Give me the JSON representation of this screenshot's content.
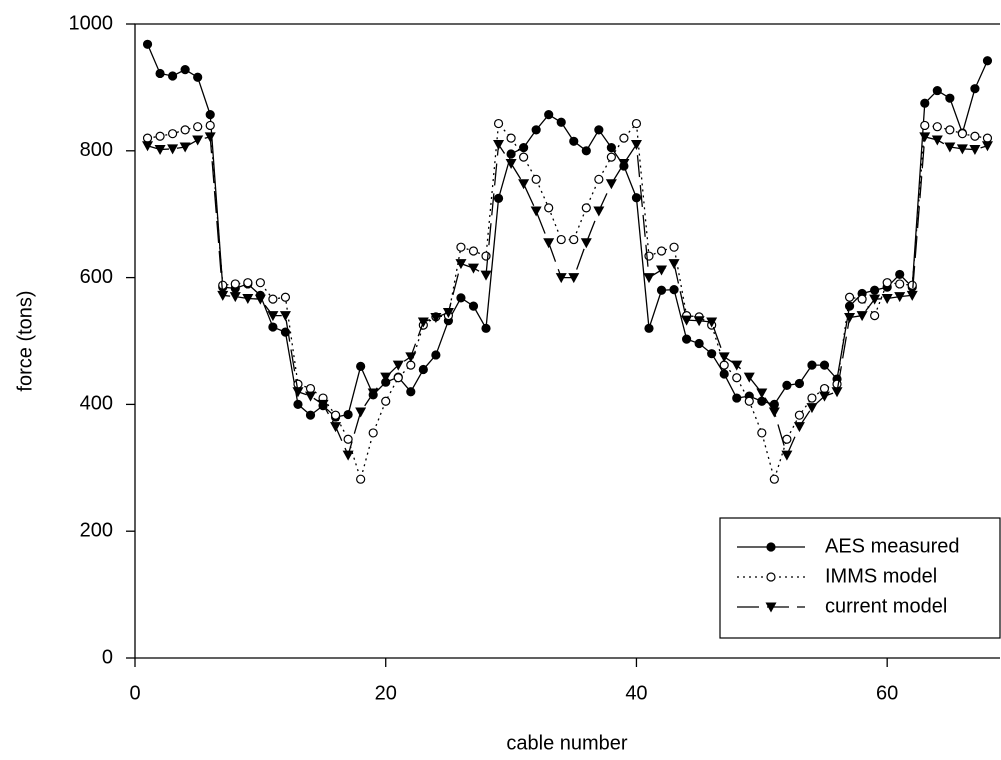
{
  "chart_data": {
    "type": "line",
    "xlabel": "cable number",
    "ylabel": "force (tons)",
    "x": [
      1,
      2,
      3,
      4,
      5,
      6,
      7,
      8,
      9,
      10,
      11,
      12,
      13,
      14,
      15,
      16,
      17,
      18,
      19,
      20,
      21,
      22,
      23,
      24,
      25,
      26,
      27,
      28,
      29,
      30,
      31,
      32,
      33,
      34,
      35,
      36,
      37,
      38,
      39,
      40,
      41,
      42,
      43,
      44,
      45,
      46,
      47,
      48,
      49,
      50,
      51,
      52,
      53,
      54,
      55,
      56,
      57,
      58,
      59,
      60,
      61,
      62,
      63,
      64,
      65,
      66,
      67,
      68
    ],
    "series": [
      {
        "name": "AES measured",
        "color": "#000000",
        "dash": "solid",
        "marker": "filled-circle",
        "values": [
          968,
          922,
          918,
          928,
          916,
          857,
          585,
          583,
          590,
          572,
          522,
          514,
          400,
          383,
          398,
          380,
          384,
          460,
          415,
          435,
          443,
          420,
          455,
          478,
          532,
          568,
          555,
          520,
          725,
          795,
          805,
          833,
          857,
          845,
          815,
          800,
          833,
          805,
          776,
          726,
          520,
          580,
          581,
          503,
          496,
          480,
          448,
          410,
          413,
          405,
          400,
          430,
          433,
          462,
          462,
          440,
          555,
          575,
          580,
          585,
          605,
          585,
          875,
          895,
          883,
          828,
          898,
          942
        ]
      },
      {
        "name": "IMMS model",
        "color": "#000000",
        "dash": "dotted",
        "marker": "open-circle",
        "values": [
          820,
          823,
          827,
          833,
          838,
          840,
          588,
          590,
          592,
          592,
          566,
          569,
          432,
          425,
          410,
          383,
          345,
          282,
          355,
          405,
          442,
          462,
          525,
          538,
          540,
          648,
          642,
          634,
          843,
          820,
          790,
          755,
          710,
          660,
          660,
          710,
          755,
          790,
          820,
          843,
          634,
          642,
          648,
          540,
          538,
          525,
          462,
          442,
          405,
          355,
          282,
          345,
          383,
          410,
          425,
          432,
          569,
          566,
          540,
          592,
          590,
          588,
          840,
          838,
          833,
          827,
          823,
          820
        ]
      },
      {
        "name": "current model",
        "color": "#000000",
        "dash": "long-dash",
        "marker": "filled-triangle-down",
        "values": [
          808,
          802,
          803,
          806,
          817,
          822,
          572,
          570,
          567,
          566,
          540,
          540,
          420,
          413,
          400,
          365,
          320,
          388,
          418,
          443,
          462,
          475,
          530,
          537,
          545,
          622,
          615,
          604,
          810,
          780,
          748,
          705,
          655,
          600,
          600,
          655,
          705,
          748,
          780,
          810,
          600,
          612,
          622,
          533,
          532,
          530,
          475,
          462,
          443,
          418,
          388,
          320,
          365,
          395,
          413,
          420,
          537,
          540,
          566,
          567,
          570,
          572,
          822,
          817,
          806,
          803,
          802,
          808
        ]
      }
    ],
    "xlim": [
      0,
      69
    ],
    "xticks": [
      0,
      20,
      40,
      60
    ],
    "ylim": [
      0,
      1000
    ],
    "yticks": [
      0,
      200,
      400,
      600,
      800,
      1000
    ],
    "grid": false,
    "legend": "lower right"
  }
}
